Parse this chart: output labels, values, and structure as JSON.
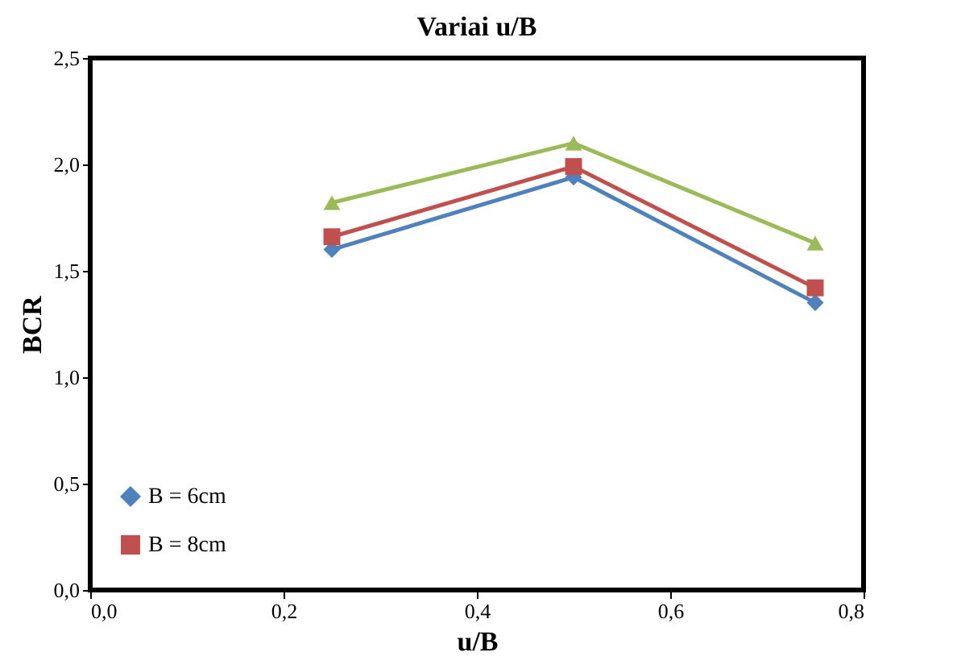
{
  "chart_data": {
    "type": "line",
    "title": "Variai u/B",
    "xlabel": "u/B",
    "ylabel": "BCR",
    "x": [
      0.25,
      0.5,
      0.75
    ],
    "series": [
      {
        "name": "B = 6cm",
        "color": "#4f81bd",
        "marker": "diamond",
        "values": [
          1.6,
          1.94,
          1.35
        ]
      },
      {
        "name": "B = 8cm",
        "color": "#c0504d",
        "marker": "square",
        "values": [
          1.66,
          1.99,
          1.42
        ]
      },
      {
        "color": "#9bbb59",
        "marker": "triangle",
        "values": [
          1.82,
          2.1,
          1.63
        ]
      }
    ],
    "xlim": [
      0,
      0.8
    ],
    "xticks": [
      {
        "value": 0,
        "label": "0,0"
      },
      {
        "value": 0.2,
        "label": "0,2"
      },
      {
        "value": 0.4,
        "label": "0,4"
      },
      {
        "value": 0.6,
        "label": "0,6"
      },
      {
        "value": 0.8,
        "label": "0,8"
      }
    ],
    "ylim": [
      0,
      2.5
    ],
    "yticks": [
      {
        "value": 0,
        "label": "0,0"
      },
      {
        "value": 0.5,
        "label": "0,5"
      },
      {
        "value": 1.0,
        "label": "1,0"
      },
      {
        "value": 1.5,
        "label": "1,5"
      },
      {
        "value": 2.0,
        "label": "2,0"
      },
      {
        "value": 2.5,
        "label": "2,5"
      }
    ],
    "grid": false,
    "legend": "bottom left"
  }
}
